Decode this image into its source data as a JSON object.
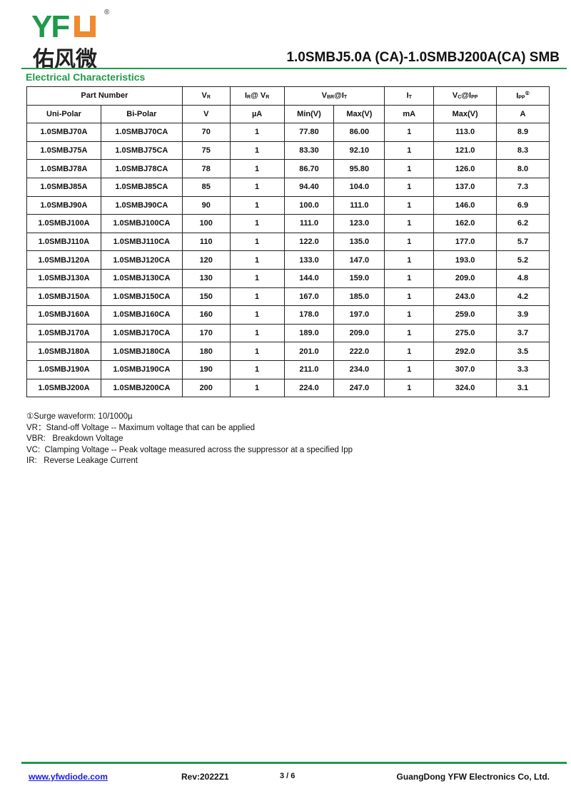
{
  "header": {
    "logo_text": "YFW",
    "logo_cn": "佑风微",
    "title": "1.0SMBJ5.0A (CA)-1.0SMBJ200A(CA)  SMB",
    "brand_color": "#1f9a4a",
    "accent_color": "#ef8a2f"
  },
  "section_title": "Electrical Characteristics",
  "table": {
    "h1": {
      "part": "Part Number",
      "vr": "V",
      "vr_sub": "R",
      "ir": "I",
      "ir_sub": "R",
      "ir_rest": "@ V",
      "ir_sub2": "R",
      "vbr": "V",
      "vbr_sub": "BR",
      "vbr_rest": "@I",
      "vbr_sub2": "T",
      "it": "I",
      "it_sub": "T",
      "vc": "V",
      "vc_sub": "C",
      "vc_rest": "@I",
      "vc_sub2": "PP",
      "ipp": "I",
      "ipp_sub": "PP",
      "ipp_sup": "①"
    },
    "h2": [
      "Uni-Polar",
      "Bi-Polar",
      "V",
      "µA",
      "Min(V)",
      "Max(V)",
      "mA",
      "Max(V)",
      "A"
    ],
    "rows": [
      [
        "1.0SMBJ70A",
        "1.0SMBJ70CA",
        "70",
        "1",
        "77.80",
        "86.00",
        "1",
        "113.0",
        "8.9"
      ],
      [
        "1.0SMBJ75A",
        "1.0SMBJ75CA",
        "75",
        "1",
        "83.30",
        "92.10",
        "1",
        "121.0",
        "8.3"
      ],
      [
        "1.0SMBJ78A",
        "1.0SMBJ78CA",
        "78",
        "1",
        "86.70",
        "95.80",
        "1",
        "126.0",
        "8.0"
      ],
      [
        "1.0SMBJ85A",
        "1.0SMBJ85CA",
        "85",
        "1",
        "94.40",
        "104.0",
        "1",
        "137.0",
        "7.3"
      ],
      [
        "1.0SMBJ90A",
        "1.0SMBJ90CA",
        "90",
        "1",
        "100.0",
        "111.0",
        "1",
        "146.0",
        "6.9"
      ],
      [
        "1.0SMBJ100A",
        "1.0SMBJ100CA",
        "100",
        "1",
        "111.0",
        "123.0",
        "1",
        "162.0",
        "6.2"
      ],
      [
        "1.0SMBJ110A",
        "1.0SMBJ110CA",
        "110",
        "1",
        "122.0",
        "135.0",
        "1",
        "177.0",
        "5.7"
      ],
      [
        "1.0SMBJ120A",
        "1.0SMBJ120CA",
        "120",
        "1",
        "133.0",
        "147.0",
        "1",
        "193.0",
        "5.2"
      ],
      [
        "1.0SMBJ130A",
        "1.0SMBJ130CA",
        "130",
        "1",
        "144.0",
        "159.0",
        "1",
        "209.0",
        "4.8"
      ],
      [
        "1.0SMBJ150A",
        "1.0SMBJ150CA",
        "150",
        "1",
        "167.0",
        "185.0",
        "1",
        "243.0",
        "4.2"
      ],
      [
        "1.0SMBJ160A",
        "1.0SMBJ160CA",
        "160",
        "1",
        "178.0",
        "197.0",
        "1",
        "259.0",
        "3.9"
      ],
      [
        "1.0SMBJ170A",
        "1.0SMBJ170CA",
        "170",
        "1",
        "189.0",
        "209.0",
        "1",
        "275.0",
        "3.7"
      ],
      [
        "1.0SMBJ180A",
        "1.0SMBJ180CA",
        "180",
        "1",
        "201.0",
        "222.0",
        "1",
        "292.0",
        "3.5"
      ],
      [
        "1.0SMBJ190A",
        "1.0SMBJ190CA",
        "190",
        "1",
        "211.0",
        "234.0",
        "1",
        "307.0",
        "3.3"
      ],
      [
        "1.0SMBJ200A",
        "1.0SMBJ200CA",
        "200",
        "1",
        "224.0",
        "247.0",
        "1",
        "324.0",
        "3.1"
      ]
    ]
  },
  "notes": [
    "①Surge waveform: 10/1000µ",
    "VR：Stand-off Voltage -- Maximum voltage that can be applied",
    "VBR:   Breakdown Voltage",
    "VC:  Clamping Voltage -- Peak voltage measured across the suppressor at a specified Ipp",
    "IR:   Reverse Leakage Current"
  ],
  "footer": {
    "website": "www.yfwdiode.com",
    "rev": "Rev:2022Z1",
    "page": "3 / 6",
    "company": "GuangDong YFW Electronics Co, Ltd."
  }
}
